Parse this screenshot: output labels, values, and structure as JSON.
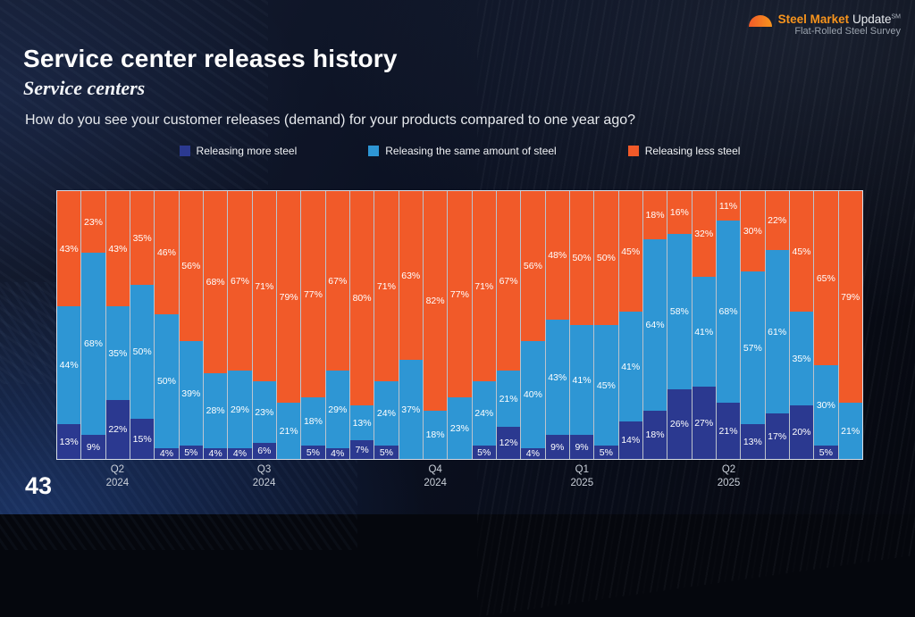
{
  "logo": {
    "name_bold": "Steel Market",
    "name_rest": "Update",
    "tm": "SM",
    "tagline": "Flat-Rolled Steel Survey"
  },
  "header": {
    "title": "Service center releases history",
    "subtitle": "Service centers",
    "question": "How do you see your customer releases (demand) for your products compared to one year ago?"
  },
  "page": {
    "number": "43"
  },
  "chart_data": {
    "type": "bar",
    "stacked": true,
    "percent": true,
    "bar_count": 33,
    "label_min_value": 4,
    "ylim": [
      0,
      100
    ],
    "legend_position": "top",
    "series": [
      {
        "name": "Releasing more steel",
        "color": "#2b3990",
        "values": [
          13,
          9,
          22,
          15,
          4,
          5,
          4,
          4,
          6,
          0,
          5,
          4,
          7,
          5,
          0,
          0,
          0,
          5,
          12,
          4,
          9,
          9,
          5,
          14,
          18,
          26,
          27,
          21,
          13,
          17,
          20,
          5,
          0
        ]
      },
      {
        "name": "Releasing the same amount of steel",
        "color": "#2e96d4",
        "values": [
          44,
          68,
          35,
          50,
          50,
          39,
          28,
          29,
          23,
          21,
          18,
          29,
          13,
          24,
          37,
          18,
          23,
          24,
          21,
          40,
          43,
          41,
          45,
          41,
          64,
          58,
          41,
          68,
          57,
          61,
          35,
          30,
          21
        ]
      },
      {
        "name": "Releasing less steel",
        "color": "#f15a29",
        "values": [
          43,
          23,
          43,
          35,
          46,
          56,
          68,
          67,
          71,
          79,
          77,
          67,
          80,
          71,
          63,
          82,
          77,
          71,
          67,
          56,
          48,
          50,
          50,
          45,
          18,
          16,
          32,
          11,
          30,
          22,
          45,
          65,
          79
        ]
      }
    ],
    "x_ticks": [
      {
        "line1": "Q2",
        "line2": "2024",
        "bar": 3
      },
      {
        "line1": "Q3",
        "line2": "2024",
        "bar": 9
      },
      {
        "line1": "Q4",
        "line2": "2024",
        "bar": 16
      },
      {
        "line1": "Q1",
        "line2": "2025",
        "bar": 22
      },
      {
        "line1": "Q2",
        "line2": "2025",
        "bar": 28
      }
    ]
  }
}
